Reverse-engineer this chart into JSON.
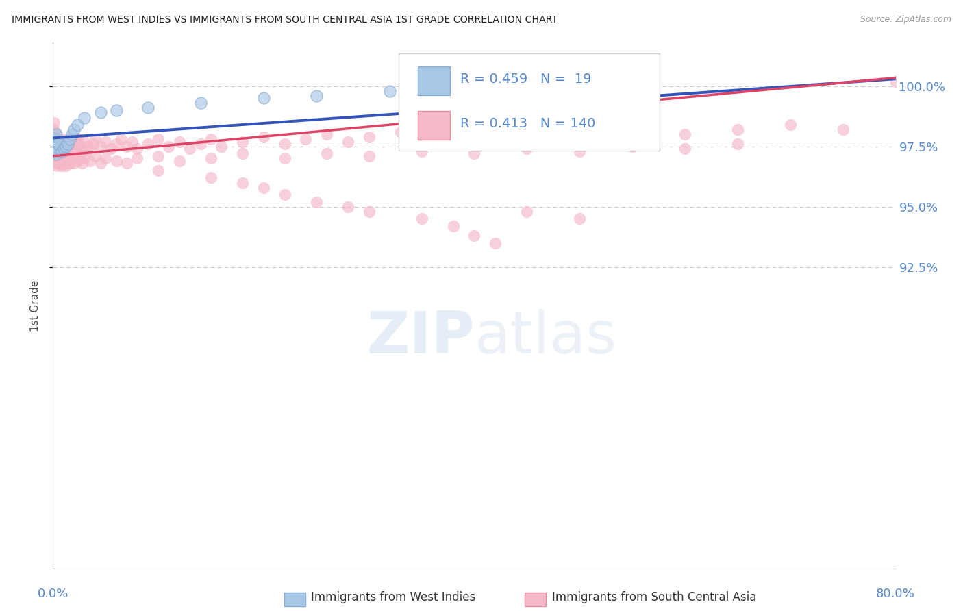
{
  "title": "IMMIGRANTS FROM WEST INDIES VS IMMIGRANTS FROM SOUTH CENTRAL ASIA 1ST GRADE CORRELATION CHART",
  "source": "Source: ZipAtlas.com",
  "ylabel": "1st Grade",
  "xlim": [
    0.0,
    80.0
  ],
  "ylim": [
    80.0,
    101.8
  ],
  "ytick_vals": [
    92.5,
    95.0,
    97.5,
    100.0
  ],
  "ytick_labels": [
    "92.5%",
    "95.0%",
    "97.5%",
    "100.0%"
  ],
  "blue_R": 0.459,
  "blue_N": 19,
  "pink_R": 0.413,
  "pink_N": 140,
  "blue_color": "#a8c8e8",
  "pink_color": "#f5b8c8",
  "blue_edge_color": "#88aacc",
  "pink_edge_color": "#f5b8c8",
  "blue_line_color": "#3355bb",
  "pink_line_color": "#dd4466",
  "background_color": "#ffffff",
  "grid_color": "#cccccc",
  "axis_label_color": "#5588cc",
  "title_color": "#222222",
  "source_color": "#999999",
  "ylabel_color": "#444444",
  "blue_line_x0": 0.0,
  "blue_line_y0": 97.85,
  "blue_line_x1": 80.0,
  "blue_line_y1": 100.3,
  "pink_line_x0": 0.0,
  "pink_line_y0": 97.1,
  "pink_line_x1": 80.0,
  "pink_line_y1": 100.35,
  "blue_x": [
    0.3,
    0.5,
    0.8,
    1.0,
    1.2,
    1.4,
    1.6,
    1.8,
    2.0,
    2.3,
    3.0,
    4.5,
    6.0,
    9.0,
    14.0,
    20.0,
    25.0,
    32.0,
    40.0
  ],
  "blue_y": [
    98.0,
    97.6,
    97.3,
    97.4,
    97.5,
    97.6,
    97.8,
    98.0,
    98.2,
    98.4,
    98.7,
    98.9,
    99.0,
    99.1,
    99.3,
    99.5,
    99.6,
    99.8,
    99.9
  ],
  "blue_cluster_x": [
    0.1,
    0.15,
    0.2,
    0.2,
    0.25,
    0.3,
    0.35,
    0.4
  ],
  "blue_cluster_y": [
    97.4,
    97.6,
    97.5,
    97.8,
    97.3,
    97.2,
    97.7,
    97.5
  ],
  "pink_x": [
    0.05,
    0.08,
    0.1,
    0.12,
    0.15,
    0.18,
    0.2,
    0.22,
    0.25,
    0.28,
    0.3,
    0.33,
    0.35,
    0.38,
    0.4,
    0.43,
    0.45,
    0.48,
    0.5,
    0.55,
    0.6,
    0.65,
    0.7,
    0.75,
    0.8,
    0.85,
    0.9,
    0.95,
    1.0,
    1.1,
    1.2,
    1.3,
    1.4,
    1.5,
    1.6,
    1.7,
    1.8,
    1.9,
    2.0,
    2.1,
    2.2,
    2.4,
    2.6,
    2.8,
    3.0,
    3.2,
    3.5,
    3.8,
    4.0,
    4.5,
    5.0,
    5.5,
    6.0,
    6.5,
    7.0,
    7.5,
    8.0,
    9.0,
    10.0,
    11.0,
    12.0,
    13.0,
    14.0,
    15.0,
    16.0,
    18.0,
    20.0,
    22.0,
    24.0,
    26.0,
    28.0,
    30.0,
    33.0,
    36.0,
    40.0,
    44.0,
    48.0,
    52.0,
    56.0,
    60.0,
    65.0,
    70.0,
    75.0,
    80.0
  ],
  "pink_y": [
    98.2,
    98.5,
    97.8,
    98.0,
    97.6,
    97.9,
    97.5,
    98.1,
    97.4,
    97.7,
    97.3,
    97.6,
    97.8,
    97.2,
    97.5,
    97.7,
    97.4,
    97.6,
    97.3,
    97.8,
    97.2,
    97.5,
    97.6,
    97.4,
    97.7,
    97.3,
    97.5,
    97.8,
    97.4,
    97.6,
    97.3,
    97.7,
    97.5,
    97.4,
    97.6,
    97.8,
    97.3,
    97.5,
    97.7,
    97.4,
    97.6,
    97.8,
    97.5,
    97.3,
    97.7,
    97.5,
    97.4,
    97.6,
    97.8,
    97.5,
    97.7,
    97.4,
    97.6,
    97.8,
    97.5,
    97.7,
    97.4,
    97.6,
    97.8,
    97.5,
    97.7,
    97.4,
    97.6,
    97.8,
    97.5,
    97.7,
    97.9,
    97.6,
    97.8,
    98.0,
    97.7,
    97.9,
    98.1,
    97.8,
    98.0,
    98.2,
    97.9,
    98.1,
    98.3,
    98.0,
    98.2,
    98.4,
    98.2,
    100.2
  ],
  "pink_extra_x": [
    0.1,
    0.15,
    0.2,
    0.25,
    0.3,
    0.35,
    0.4,
    0.45,
    0.5,
    0.55,
    0.6,
    0.65,
    0.7,
    0.75,
    0.8,
    0.85,
    0.9,
    0.95,
    1.0,
    1.1,
    1.2,
    1.3,
    1.4,
    1.5,
    1.6,
    1.7,
    1.8,
    1.9,
    2.0,
    2.2,
    2.4,
    2.6,
    2.8,
    3.0,
    3.5,
    4.0,
    4.5,
    5.0,
    6.0,
    7.0,
    8.0,
    10.0,
    12.0,
    15.0,
    18.0,
    22.0,
    26.0,
    30.0,
    35.0,
    40.0,
    45.0,
    50.0,
    55.0,
    60.0,
    65.0
  ],
  "pink_extra_y": [
    97.1,
    96.8,
    97.2,
    96.9,
    97.0,
    96.7,
    96.8,
    97.1,
    96.9,
    97.0,
    96.8,
    97.2,
    96.9,
    97.0,
    96.7,
    96.8,
    97.1,
    96.9,
    97.0,
    96.8,
    96.7,
    97.0,
    96.8,
    96.9,
    97.1,
    96.8,
    96.9,
    97.0,
    96.8,
    97.0,
    96.9,
    97.1,
    96.8,
    97.0,
    96.9,
    97.1,
    96.8,
    97.0,
    96.9,
    96.8,
    97.0,
    97.1,
    96.9,
    97.0,
    97.2,
    97.0,
    97.2,
    97.1,
    97.3,
    97.2,
    97.4,
    97.3,
    97.5,
    97.4,
    97.6
  ],
  "pink_low_x": [
    10.0,
    15.0,
    18.0,
    20.0,
    22.0,
    25.0,
    28.0,
    30.0,
    35.0,
    38.0,
    40.0,
    42.0,
    45.0,
    50.0
  ],
  "pink_low_y": [
    96.5,
    96.2,
    96.0,
    95.8,
    95.5,
    95.2,
    95.0,
    94.8,
    94.5,
    94.2,
    93.8,
    93.5,
    94.8,
    94.5
  ]
}
